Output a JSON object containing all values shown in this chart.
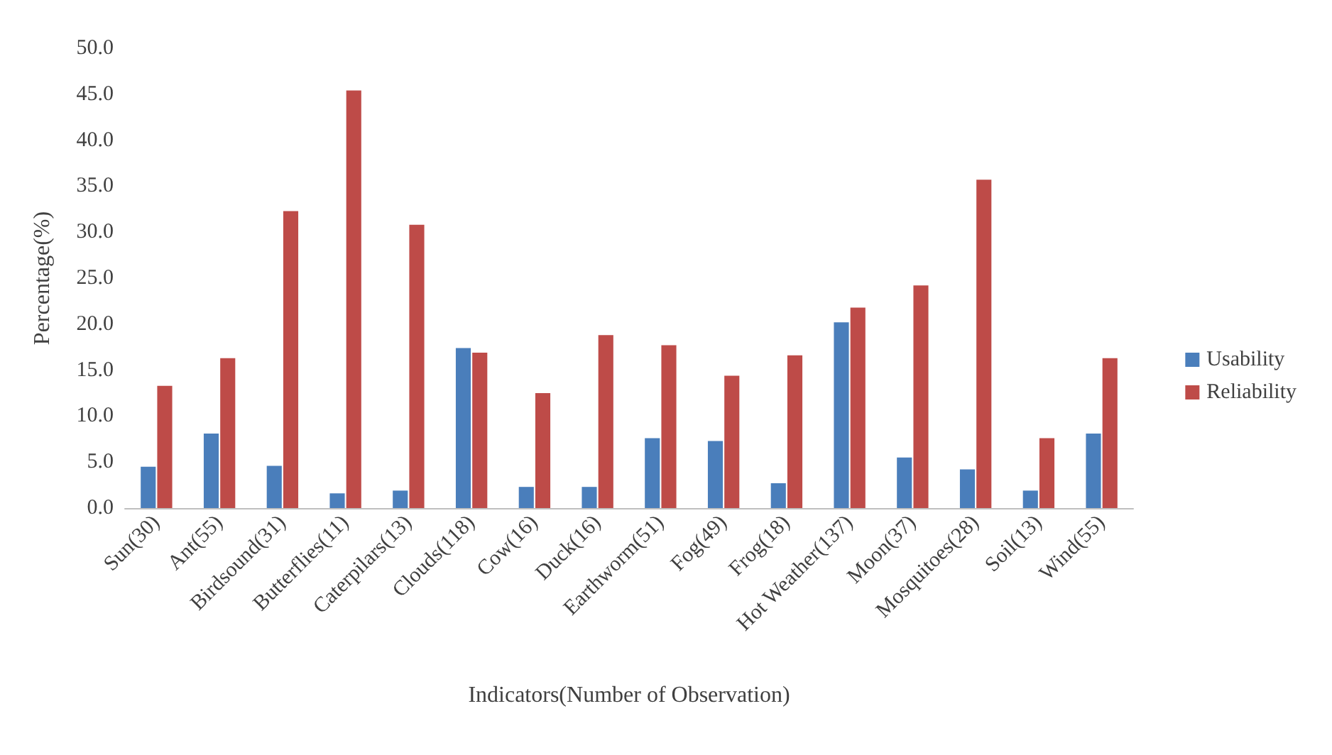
{
  "chart_data": {
    "type": "bar",
    "xlabel": "Indicators(Number of Observation)",
    "ylabel": "Percentage(%)",
    "categories": [
      "Sun(30)",
      "Ant(55)",
      "Birdsound(31)",
      "Butterflies(11)",
      "Caterpilars(13)",
      "Clouds(118)",
      "Cow(16)",
      "Duck(16)",
      "Earthworm(51)",
      "Fog(49)",
      "Frog(18)",
      "Hot Weather(137)",
      "Moon(37)",
      "Mosquitoes(28)",
      "Soil(13)",
      "Wind(55)"
    ],
    "series": [
      {
        "name": "Usability",
        "color": "#4a7ebb",
        "values": [
          4.5,
          8.1,
          4.6,
          1.6,
          1.9,
          17.4,
          2.3,
          2.3,
          7.6,
          7.3,
          2.7,
          20.2,
          5.5,
          4.2,
          1.9,
          8.1
        ]
      },
      {
        "name": "Reliability",
        "color": "#be4b48",
        "values": [
          13.3,
          16.3,
          32.3,
          45.4,
          30.8,
          16.9,
          12.5,
          18.8,
          17.7,
          14.4,
          16.6,
          21.8,
          24.2,
          35.7,
          7.6,
          16.3
        ]
      }
    ],
    "ylim": [
      0,
      50
    ],
    "yticks": [
      {
        "value": 0,
        "label": "0.0"
      },
      {
        "value": 5,
        "label": "5.0"
      },
      {
        "value": 10,
        "label": "10.0"
      },
      {
        "value": 15,
        "label": "15.0"
      },
      {
        "value": 20,
        "label": "20.0"
      },
      {
        "value": 25,
        "label": "25.0"
      },
      {
        "value": 30,
        "label": "30.0"
      },
      {
        "value": 35,
        "label": "35.0"
      },
      {
        "value": 40,
        "label": "40.0"
      },
      {
        "value": 45,
        "label": "45.0"
      },
      {
        "value": 50,
        "label": "50.0"
      }
    ],
    "grid": false,
    "legend": "right"
  }
}
